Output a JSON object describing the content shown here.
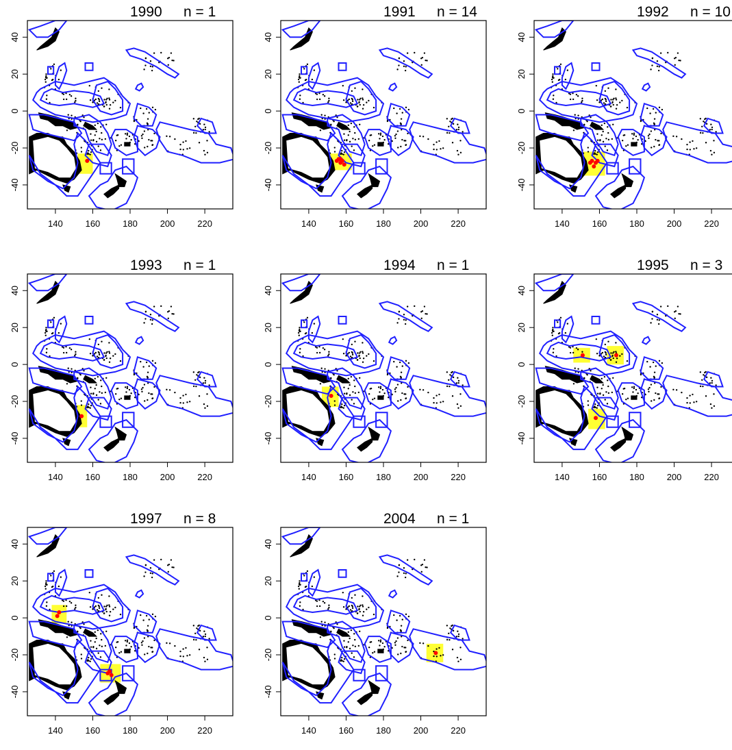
{
  "figure": {
    "x_ticks": [
      "140",
      "160",
      "180",
      "200",
      "220"
    ],
    "y_ticks": [
      "40",
      "20",
      "0",
      "-20",
      "-40"
    ],
    "x_tick_values": [
      140,
      160,
      180,
      200,
      220
    ],
    "y_tick_values": [
      40,
      20,
      0,
      -20,
      -40
    ],
    "x_range": [
      125,
      235
    ],
    "y_range": [
      -53,
      49
    ],
    "colors": {
      "zone_boundary": "#1f1fff",
      "land": "#000000",
      "highlight_box": "#ffff33",
      "observation": "#ff0000",
      "frame": "#000000"
    }
  },
  "panels": [
    {
      "year": "1990",
      "n_label": "n = 1",
      "highlights": [
        {
          "lon": [
            152,
            160
          ],
          "lat": [
            -34,
            -23
          ]
        }
      ],
      "points": [
        [
          157,
          -27
        ]
      ]
    },
    {
      "year": "1991",
      "n_label": "n = 14",
      "highlights": [
        {
          "lon": [
            151,
            163
          ],
          "lat": [
            -32,
            -23
          ]
        }
      ],
      "points": [
        [
          155,
          -27
        ],
        [
          157,
          -28
        ],
        [
          158,
          -27
        ],
        [
          156,
          -26
        ],
        [
          159,
          -29
        ],
        [
          157,
          -26
        ]
      ]
    },
    {
      "year": "1992",
      "n_label": "n = 10",
      "highlights": [
        {
          "lon": [
            151,
            163
          ],
          "lat": [
            -35,
            -22
          ]
        }
      ],
      "points": [
        [
          156,
          -27
        ],
        [
          158,
          -28
        ],
        [
          157,
          -30
        ],
        [
          155,
          -28
        ],
        [
          159,
          -27
        ]
      ]
    },
    {
      "year": "1993",
      "n_label": "n = 1",
      "highlights": [
        {
          "lon": [
            150,
            157
          ],
          "lat": [
            -34,
            -22
          ]
        }
      ],
      "points": [
        [
          154,
          -28
        ]
      ]
    },
    {
      "year": "1994",
      "n_label": "n = 1",
      "highlights": [
        {
          "lon": [
            147,
            156
          ],
          "lat": [
            -23,
            -12
          ]
        }
      ],
      "points": [
        [
          152,
          -17
        ]
      ]
    },
    {
      "year": "1995",
      "n_label": "n = 3",
      "highlights": [
        {
          "lon": [
            146,
            155
          ],
          "lat": [
            1,
            9
          ]
        },
        {
          "lon": [
            164,
            173
          ],
          "lat": [
            0,
            10
          ]
        },
        {
          "lon": [
            154,
            163
          ],
          "lat": [
            -35,
            -24
          ]
        }
      ],
      "points": [
        [
          151,
          5
        ],
        [
          169,
          5
        ],
        [
          158,
          -29
        ]
      ]
    },
    {
      "year": "1997",
      "n_label": "n = 8",
      "highlights": [
        {
          "lon": [
            138,
            146
          ],
          "lat": [
            -3,
            7
          ]
        },
        {
          "lon": [
            164,
            175
          ],
          "lat": [
            -35,
            -25
          ]
        }
      ],
      "points": [
        [
          142,
          3
        ],
        [
          141,
          1
        ],
        [
          168,
          -30
        ],
        [
          170,
          -31
        ],
        [
          169,
          -29
        ]
      ]
    },
    {
      "year": "2004",
      "n_label": "n = 1",
      "highlights": [
        {
          "lon": [
            203,
            212
          ],
          "lat": [
            -24,
            -14
          ]
        }
      ],
      "points": [
        [
          208,
          -19
        ]
      ]
    }
  ]
}
